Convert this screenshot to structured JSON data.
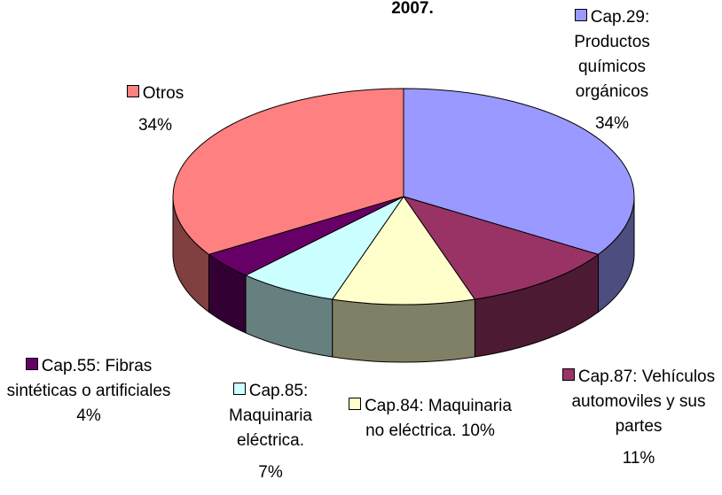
{
  "chart_data": {
    "type": "pie3d",
    "title": "2007.",
    "categories": [
      "Cap.29: Productos químicos orgánicos",
      "Cap.87: Vehículos automoviles y sus partes",
      "Cap.84: Maquinaria no eléctrica.",
      "Cap.85: Maquinaria eléctrica.",
      "Cap.55: Fibras sintéticas o artificiales",
      "Otros"
    ],
    "values": [
      34,
      11,
      10,
      7,
      4,
      34
    ],
    "value_labels": [
      "34%",
      "11%",
      "10%",
      "7%",
      "4%",
      "34%"
    ],
    "colors": [
      "#9999ff",
      "#993366",
      "#ffffcc",
      "#ccffff",
      "#660066",
      "#ff8080"
    ]
  }
}
